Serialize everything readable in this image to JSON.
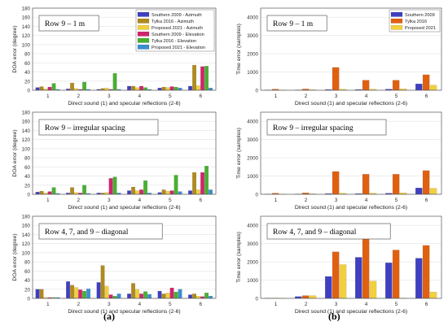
{
  "figure": {
    "label_a": "(a)",
    "label_b": "(b)"
  },
  "doa_series": [
    {
      "name": "Southern 2009 - Azimuth",
      "color": "#3f3fc0"
    },
    {
      "name": "Tylka 2016 - Azimuth",
      "color": "#b08a1c"
    },
    {
      "name": "Proposed 2021 - Azimuth",
      "color": "#f0d040"
    },
    {
      "name": "Southern 2009 - Elevation",
      "color": "#d1246e"
    },
    {
      "name": "Tylka 2016 - Elevation",
      "color": "#48b030"
    },
    {
      "name": "Proposed 2021 - Elevation",
      "color": "#3a8fd0"
    }
  ],
  "time_series": [
    {
      "name": "Southern 2009",
      "color": "#3f3fc0"
    },
    {
      "name": "Tylka 2016",
      "color": "#e06010"
    },
    {
      "name": "Proposed 2021",
      "color": "#f0d040"
    }
  ],
  "chart_data": [
    {
      "type": "bar",
      "title": "Row 9 – 1 m",
      "xlabel": "Direct sound (1) and specular reflections (2-6)",
      "ylabel": "DOA error (degree)",
      "categories": [
        "1",
        "2",
        "3",
        "4",
        "5",
        "6"
      ],
      "yticks": [
        "0",
        "20",
        "40",
        "60",
        "80",
        "100",
        "120",
        "140",
        "160",
        "180"
      ],
      "ylim": [
        0,
        180
      ],
      "legend": "top-right",
      "series": [
        {
          "name": "Southern 2009 - Azimuth",
          "values": [
            6,
            3,
            2,
            9,
            5,
            9
          ]
        },
        {
          "name": "Tylka 2016 - Azimuth",
          "values": [
            8,
            16,
            4,
            9,
            7,
            55
          ]
        },
        {
          "name": "Proposed 2021 - Azimuth",
          "values": [
            3,
            4,
            5,
            6,
            6,
            10
          ]
        },
        {
          "name": "Southern 2009 - Elevation",
          "values": [
            7,
            2,
            2,
            9,
            8,
            52
          ]
        },
        {
          "name": "Tylka 2016 - Elevation",
          "values": [
            15,
            18,
            37,
            6,
            7,
            53
          ]
        },
        {
          "name": "Proposed 2021 - Elevation",
          "values": [
            2,
            2,
            2,
            2,
            5,
            5
          ]
        }
      ]
    },
    {
      "type": "bar",
      "title": "Row 9 – 1 m",
      "xlabel": "Direct sound (1) and specular reflections (2-6)",
      "ylabel": "Time error (samples)",
      "categories": [
        "1",
        "2",
        "3",
        "4",
        "5",
        "6"
      ],
      "yticks": [
        "0",
        "1000",
        "2000",
        "3000",
        "4000"
      ],
      "ylim": [
        0,
        4500
      ],
      "legend": "top-right",
      "series": [
        {
          "name": "Southern 2009",
          "values": [
            10,
            20,
            40,
            40,
            60,
            350
          ]
        },
        {
          "name": "Tylka 2016",
          "values": [
            60,
            70,
            1250,
            550,
            550,
            850
          ]
        },
        {
          "name": "Proposed 2021",
          "values": [
            10,
            30,
            60,
            60,
            80,
            280
          ]
        }
      ]
    },
    {
      "type": "bar",
      "title": "Row 9 – irregular spacing",
      "xlabel": "Direct sound (1) and specular reflections (2-6)",
      "ylabel": "DOA error (degree)",
      "categories": [
        "1",
        "2",
        "3",
        "4",
        "5",
        "6"
      ],
      "yticks": [
        "0",
        "20",
        "40",
        "60",
        "80",
        "100",
        "120",
        "140",
        "160",
        "180"
      ],
      "ylim": [
        0,
        180
      ],
      "series": [
        {
          "name": "Southern 2009 - Azimuth",
          "values": [
            5,
            3,
            3,
            8,
            4,
            8
          ]
        },
        {
          "name": "Tylka 2016 - Azimuth",
          "values": [
            7,
            15,
            3,
            16,
            10,
            48
          ]
        },
        {
          "name": "Proposed 2021 - Azimuth",
          "values": [
            3,
            4,
            4,
            8,
            7,
            10
          ]
        },
        {
          "name": "Southern 2009 - Elevation",
          "values": [
            6,
            3,
            35,
            10,
            8,
            48
          ]
        },
        {
          "name": "Tylka 2016 - Elevation",
          "values": [
            15,
            20,
            38,
            30,
            42,
            62
          ]
        },
        {
          "name": "Proposed 2021 - Elevation",
          "values": [
            2,
            2,
            3,
            3,
            6,
            10
          ]
        }
      ]
    },
    {
      "type": "bar",
      "title": "Row 9 – irregular spacing",
      "xlabel": "Direct sound (1) and specular reflections (2-6)",
      "ylabel": "Time error (samples)",
      "categories": [
        "1",
        "2",
        "3",
        "4",
        "5",
        "6"
      ],
      "yticks": [
        "0",
        "1000",
        "2000",
        "3000",
        "4000"
      ],
      "ylim": [
        0,
        4500
      ],
      "series": [
        {
          "name": "Southern 2009",
          "values": [
            10,
            20,
            40,
            40,
            60,
            350
          ]
        },
        {
          "name": "Tylka 2016",
          "values": [
            60,
            80,
            1250,
            1100,
            1100,
            1300
          ]
        },
        {
          "name": "Proposed 2021",
          "values": [
            10,
            30,
            60,
            60,
            80,
            330
          ]
        }
      ]
    },
    {
      "type": "bar",
      "title": "Row 4, 7, and 9 – diagonal",
      "xlabel": "Direct sound (1) and specular reflections (2-6)",
      "ylabel": "DOA error (degree)",
      "categories": [
        "1",
        "2",
        "3",
        "4",
        "5",
        "6"
      ],
      "yticks": [
        "0",
        "20",
        "40",
        "60",
        "80",
        "100",
        "120",
        "140",
        "160",
        "180"
      ],
      "ylim": [
        0,
        180
      ],
      "series": [
        {
          "name": "Southern 2009 - Azimuth",
          "values": [
            20,
            37,
            35,
            10,
            16,
            8
          ]
        },
        {
          "name": "Tylka 2016 - Azimuth",
          "values": [
            20,
            29,
            72,
            33,
            10,
            10
          ]
        },
        {
          "name": "Proposed 2021 - Azimuth",
          "values": [
            2,
            24,
            27,
            20,
            12,
            5
          ]
        },
        {
          "name": "Southern 2009 - Elevation",
          "values": [
            2,
            19,
            8,
            10,
            23,
            4
          ]
        },
        {
          "name": "Tylka 2016 - Elevation",
          "values": [
            2,
            16,
            5,
            15,
            14,
            12
          ]
        },
        {
          "name": "Proposed 2021 - Elevation",
          "values": [
            2,
            21,
            10,
            9,
            20,
            5
          ]
        }
      ]
    },
    {
      "type": "bar",
      "title": "Row 4, 7, and 9 – diagonal",
      "xlabel": "Direct sound (1) and specular reflections (2-6)",
      "ylabel": "Time error (samples)",
      "categories": [
        "1",
        "2",
        "3",
        "4",
        "5",
        "6"
      ],
      "yticks": [
        "0",
        "1000",
        "2000",
        "3000",
        "4000"
      ],
      "ylim": [
        0,
        4500
      ],
      "series": [
        {
          "name": "Southern 2009",
          "values": [
            10,
            100,
            1200,
            2250,
            1950,
            2200
          ]
        },
        {
          "name": "Tylka 2016",
          "values": [
            10,
            150,
            2550,
            3550,
            2650,
            2900
          ]
        },
        {
          "name": "Proposed 2021",
          "values": [
            10,
            150,
            1850,
            950,
            20,
            350
          ]
        }
      ]
    }
  ]
}
